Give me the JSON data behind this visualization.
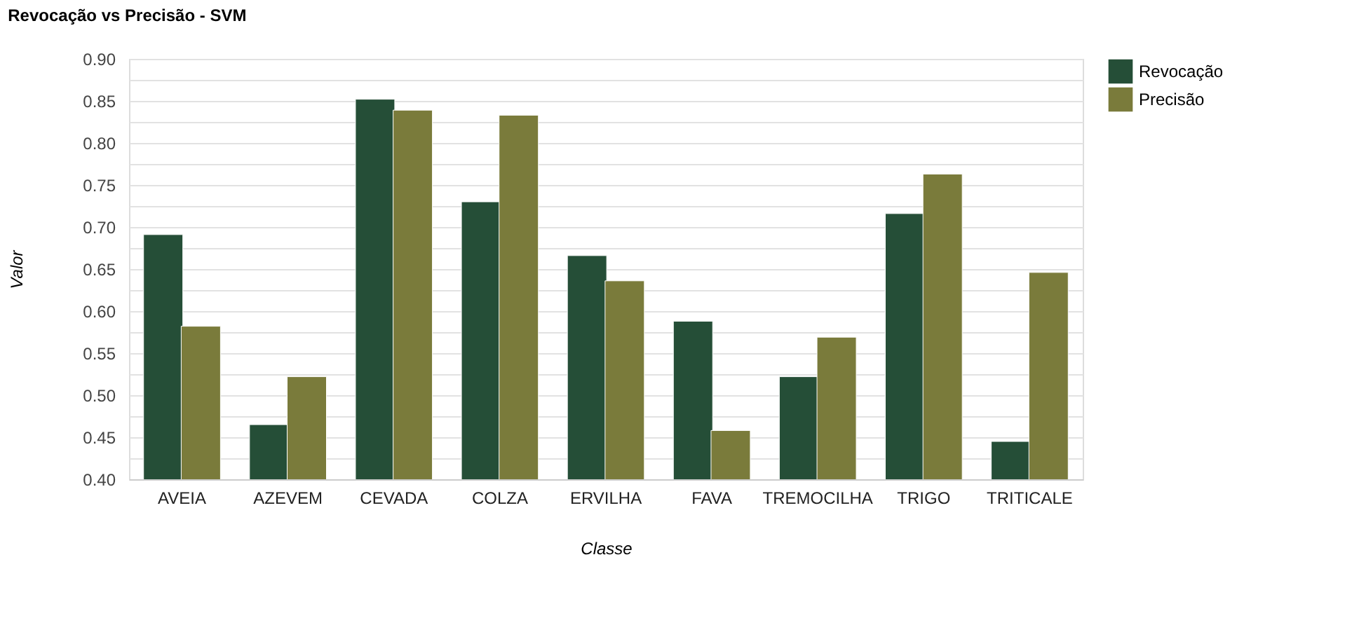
{
  "chart_data": {
    "type": "bar",
    "title": "Revocação vs Precisão - SVM",
    "xlabel": "Classe",
    "ylabel": "Valor",
    "categories": [
      "AVEIA",
      "AZEVEM",
      "CEVADA",
      "COLZA",
      "ERVILHA",
      "FAVA",
      "TREMOCILHA",
      "TRIGO",
      "TRITICALE"
    ],
    "series": [
      {
        "name": "Revocação",
        "color": "#254e37",
        "values": [
          0.691,
          0.465,
          0.852,
          0.73,
          0.666,
          0.588,
          0.522,
          0.716,
          0.445
        ]
      },
      {
        "name": "Precisão",
        "color": "#7a7b3b",
        "values": [
          0.582,
          0.522,
          0.839,
          0.833,
          0.636,
          0.458,
          0.569,
          0.763,
          0.646
        ]
      }
    ],
    "ylim": [
      0.4,
      0.9
    ],
    "yticks": [
      {
        "value": 0.4,
        "label": "0.40"
      },
      {
        "value": 0.425,
        "label": null
      },
      {
        "value": 0.45,
        "label": "0.45"
      },
      {
        "value": 0.475,
        "label": null
      },
      {
        "value": 0.5,
        "label": "0.50"
      },
      {
        "value": 0.525,
        "label": null
      },
      {
        "value": 0.55,
        "label": "0.55"
      },
      {
        "value": 0.575,
        "label": null
      },
      {
        "value": 0.6,
        "label": "0.60"
      },
      {
        "value": 0.625,
        "label": null
      },
      {
        "value": 0.65,
        "label": "0.65"
      },
      {
        "value": 0.675,
        "label": null
      },
      {
        "value": 0.7,
        "label": "0.70"
      },
      {
        "value": 0.725,
        "label": null
      },
      {
        "value": 0.75,
        "label": "0.75"
      },
      {
        "value": 0.775,
        "label": null
      },
      {
        "value": 0.8,
        "label": "0.80"
      },
      {
        "value": 0.825,
        "label": null
      },
      {
        "value": 0.85,
        "label": "0.85"
      },
      {
        "value": 0.875,
        "label": null
      },
      {
        "value": 0.9,
        "label": "0.90"
      }
    ],
    "grid": "y",
    "legend": "top right"
  }
}
